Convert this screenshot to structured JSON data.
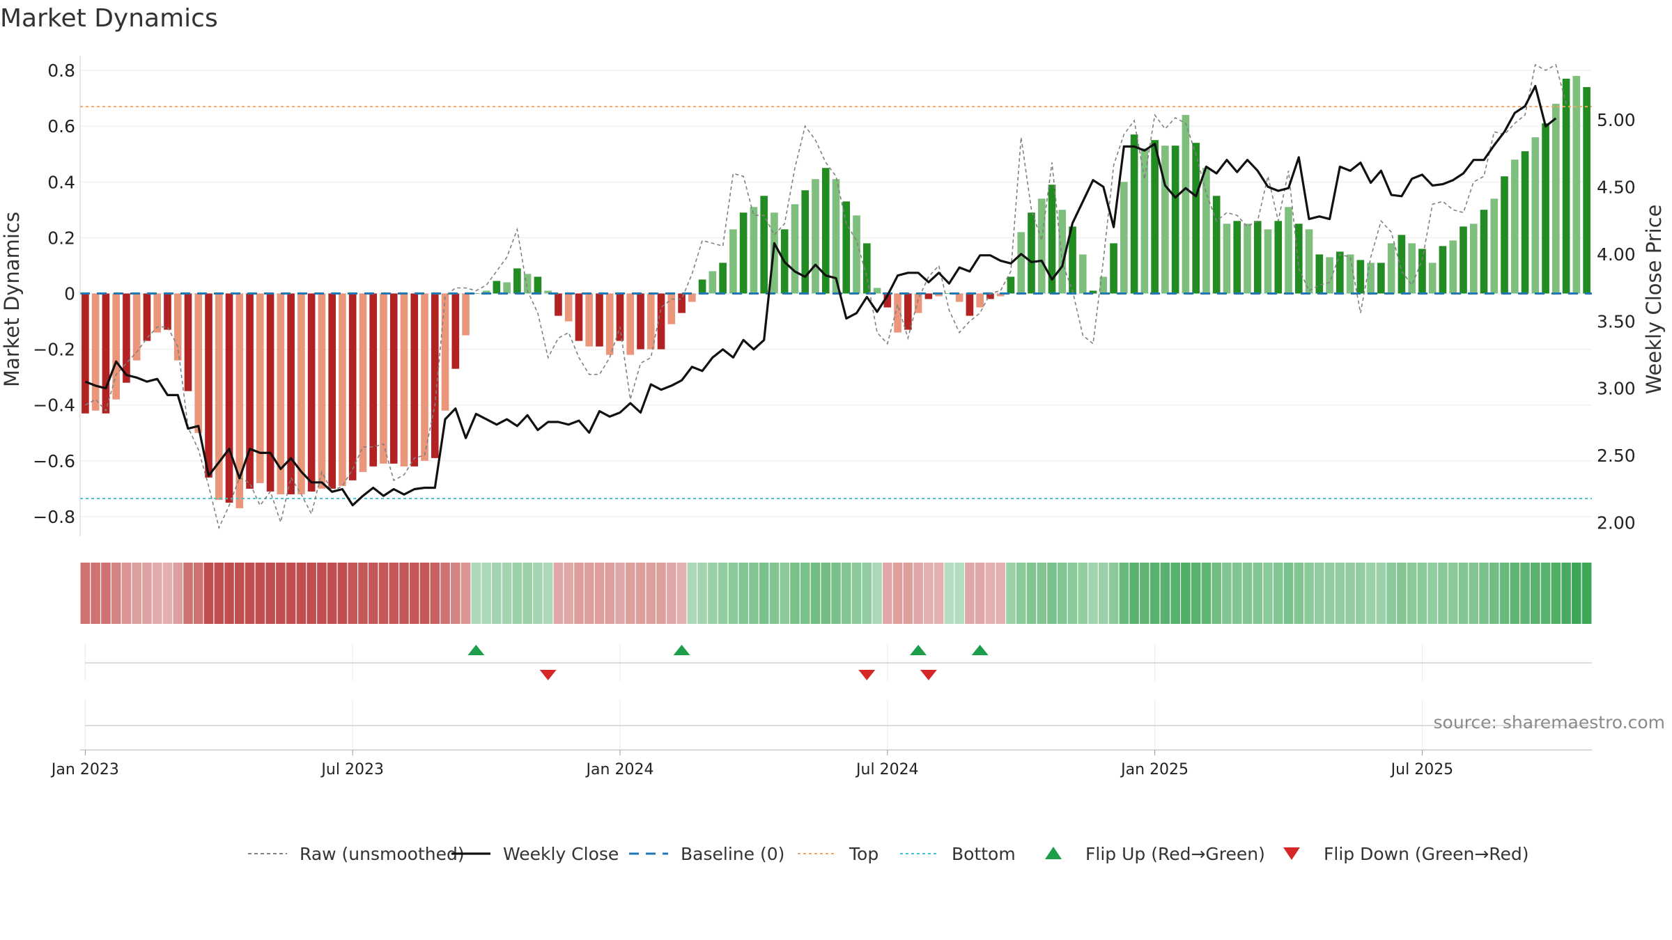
{
  "title": "Market Dynamics",
  "source_note": "source: sharemaestro.com",
  "colors": {
    "strong_green": "#228b22",
    "light_green": "#7ebf7e",
    "strong_red": "#b22222",
    "light_red": "#e9967a",
    "weekly_close": "#111111",
    "raw": "#808080",
    "baseline": "#1f77b4",
    "top": "#f4a460",
    "bottom": "#40c4d0",
    "flip_up": "#1e9e4a",
    "flip_down": "#d62728"
  },
  "chart_data": {
    "type": "bar",
    "x_axis": {
      "tick_labels": [
        "Jan 2023",
        "Jul 2023",
        "Jan 2024",
        "Jul 2024",
        "Jan 2025",
        "Jul 2025"
      ],
      "tick_weeks": [
        0,
        26,
        52,
        78,
        104,
        130
      ]
    },
    "y_left": {
      "label": "Market Dynamics",
      "range": [
        -0.87,
        0.84
      ],
      "ticks": [
        "−0.8",
        "−0.6",
        "−0.4",
        "−0.2",
        "0",
        "0.2",
        "0.4",
        "0.6",
        "0.8"
      ],
      "tick_values": [
        -0.8,
        -0.6,
        -0.4,
        -0.2,
        0,
        0.2,
        0.4,
        0.6,
        0.8
      ]
    },
    "y_right": {
      "label": "Weekly Close Price",
      "range": [
        1.9,
        5.45
      ],
      "ticks": [
        "2.00",
        "2.50",
        "3.00",
        "3.50",
        "4.00",
        "4.50",
        "5.00"
      ],
      "tick_values": [
        2.0,
        2.5,
        3.0,
        3.5,
        4.0,
        4.5,
        5.0
      ]
    },
    "legend": {
      "raw": "Raw (unsmoothed)",
      "close": "Weekly Close",
      "baseline": "Baseline (0)",
      "top": "Top",
      "bottom": "Bottom",
      "flip_up": "Flip Up (Red→Green)",
      "flip_down": "Flip Down (Green→Red)"
    },
    "top_level": 0.67,
    "bottom_level": -0.735,
    "baseline_level": 0,
    "market_dynamics": [
      -0.43,
      -0.42,
      -0.43,
      -0.38,
      -0.32,
      -0.24,
      -0.17,
      -0.14,
      -0.13,
      -0.24,
      -0.35,
      -0.5,
      -0.66,
      -0.74,
      -0.75,
      -0.77,
      -0.7,
      -0.68,
      -0.71,
      -0.72,
      -0.72,
      -0.72,
      -0.71,
      -0.7,
      -0.7,
      -0.69,
      -0.67,
      -0.64,
      -0.62,
      -0.61,
      -0.61,
      -0.62,
      -0.62,
      -0.6,
      -0.59,
      -0.42,
      -0.27,
      -0.15,
      0.0,
      0.01,
      0.045,
      0.04,
      0.09,
      0.07,
      0.06,
      0.01,
      -0.08,
      -0.1,
      -0.17,
      -0.19,
      -0.19,
      -0.22,
      -0.17,
      -0.22,
      -0.2,
      -0.2,
      -0.2,
      -0.11,
      -0.07,
      -0.03,
      0.05,
      0.08,
      0.11,
      0.23,
      0.29,
      0.31,
      0.35,
      0.29,
      0.23,
      0.32,
      0.37,
      0.41,
      0.45,
      0.41,
      0.33,
      0.28,
      0.18,
      0.02,
      -0.05,
      -0.14,
      -0.13,
      -0.07,
      -0.02,
      -0.01,
      0.0,
      -0.03,
      -0.08,
      -0.05,
      -0.02,
      -0.01,
      0.06,
      0.22,
      0.29,
      0.34,
      0.39,
      0.3,
      0.24,
      0.14,
      0.01,
      0.06,
      0.18,
      0.4,
      0.57,
      0.52,
      0.55,
      0.53,
      0.53,
      0.64,
      0.54,
      0.45,
      0.35,
      0.25,
      0.26,
      0.25,
      0.26,
      0.23,
      0.26,
      0.31,
      0.25,
      0.23,
      0.14,
      0.13,
      0.15,
      0.14,
      0.12,
      0.11,
      0.11,
      0.18,
      0.21,
      0.18,
      0.16,
      0.11,
      0.17,
      0.19,
      0.24,
      0.25,
      0.3,
      0.34,
      0.42,
      0.48,
      0.51,
      0.56,
      0.61,
      0.68,
      0.77,
      0.78,
      0.74
    ],
    "raw": [
      -0.4,
      -0.38,
      -0.42,
      -0.29,
      -0.25,
      -0.21,
      -0.16,
      -0.12,
      -0.12,
      -0.19,
      -0.48,
      -0.56,
      -0.69,
      -0.84,
      -0.76,
      -0.66,
      -0.68,
      -0.76,
      -0.71,
      -0.82,
      -0.66,
      -0.72,
      -0.79,
      -0.64,
      -0.71,
      -0.69,
      -0.63,
      -0.55,
      -0.55,
      -0.54,
      -0.67,
      -0.65,
      -0.59,
      -0.58,
      -0.4,
      -0.01,
      0.02,
      0.02,
      0.01,
      0.03,
      0.08,
      0.13,
      0.23,
      0.01,
      -0.07,
      -0.23,
      -0.16,
      -0.14,
      -0.23,
      -0.29,
      -0.29,
      -0.23,
      -0.12,
      -0.38,
      -0.25,
      -0.23,
      -0.05,
      -0.02,
      -0.02,
      0.07,
      0.19,
      0.18,
      0.17,
      0.43,
      0.42,
      0.28,
      0.28,
      0.21,
      0.25,
      0.45,
      0.6,
      0.55,
      0.47,
      0.42,
      0.25,
      0.19,
      0.06,
      -0.14,
      -0.18,
      -0.04,
      -0.16,
      -0.02,
      0.06,
      0.1,
      -0.06,
      -0.14,
      -0.1,
      -0.07,
      0.0,
      0.01,
      0.08,
      0.56,
      0.3,
      0.19,
      0.47,
      0.11,
      0.01,
      -0.15,
      -0.18,
      0.12,
      0.46,
      0.57,
      0.62,
      0.41,
      0.64,
      0.59,
      0.63,
      0.61,
      0.5,
      0.36,
      0.26,
      0.29,
      0.28,
      0.24,
      0.26,
      0.42,
      0.26,
      0.44,
      0.09,
      0.01,
      0.03,
      0.04,
      0.14,
      0.13,
      -0.07,
      0.13,
      0.26,
      0.22,
      0.08,
      0.03,
      0.12,
      0.32,
      0.33,
      0.3,
      0.29,
      0.4,
      0.42,
      0.58,
      0.57,
      0.61,
      0.64,
      0.82,
      0.8,
      0.82,
      0.68
    ],
    "weekly_close": [
      3.05,
      3.02,
      3.0,
      3.2,
      3.1,
      3.08,
      3.05,
      3.07,
      2.95,
      2.95,
      2.7,
      2.72,
      2.35,
      2.45,
      2.55,
      2.33,
      2.55,
      2.52,
      2.52,
      2.4,
      2.48,
      2.38,
      2.3,
      2.3,
      2.23,
      2.25,
      2.13,
      2.2,
      2.26,
      2.2,
      2.25,
      2.21,
      2.25,
      2.26,
      2.26,
      2.77,
      2.85,
      2.63,
      2.81,
      2.77,
      2.73,
      2.77,
      2.72,
      2.8,
      2.69,
      2.75,
      2.75,
      2.73,
      2.76,
      2.67,
      2.83,
      2.79,
      2.82,
      2.89,
      2.82,
      3.03,
      2.99,
      3.02,
      3.06,
      3.16,
      3.13,
      3.23,
      3.29,
      3.23,
      3.36,
      3.29,
      3.36,
      4.08,
      3.94,
      3.87,
      3.83,
      3.92,
      3.84,
      3.82,
      3.52,
      3.56,
      3.68,
      3.57,
      3.69,
      3.84,
      3.86,
      3.86,
      3.79,
      3.86,
      3.78,
      3.9,
      3.87,
      3.99,
      3.99,
      3.95,
      3.93,
      4.0,
      3.94,
      3.95,
      3.81,
      3.91,
      4.23,
      4.39,
      4.55,
      4.5,
      4.2,
      4.8,
      4.8,
      4.77,
      4.82,
      4.51,
      4.42,
      4.49,
      4.43,
      4.65,
      4.6,
      4.7,
      4.61,
      4.7,
      4.62,
      4.5,
      4.47,
      4.49,
      4.72,
      4.26,
      4.28,
      4.26,
      4.65,
      4.62,
      4.68,
      4.53,
      4.62,
      4.44,
      4.43,
      4.56,
      4.59,
      4.51,
      4.52,
      4.55,
      4.6,
      4.7,
      4.7,
      4.81,
      4.91,
      5.05,
      5.1,
      5.25,
      4.95,
      5.01
    ],
    "regime_strip": [
      -0.55,
      -0.55,
      -0.55,
      -0.45,
      -0.35,
      -0.3,
      -0.28,
      -0.22,
      -0.2,
      -0.3,
      -0.55,
      -0.55,
      -0.75,
      -0.75,
      -0.75,
      -0.75,
      -0.75,
      -0.75,
      -0.75,
      -0.75,
      -0.75,
      -0.75,
      -0.75,
      -0.75,
      -0.75,
      -0.75,
      -0.7,
      -0.7,
      -0.7,
      -0.7,
      -0.7,
      -0.7,
      -0.7,
      -0.7,
      -0.65,
      -0.55,
      -0.45,
      -0.35,
      0.25,
      0.25,
      0.3,
      0.3,
      0.35,
      0.35,
      0.3,
      0.25,
      -0.25,
      -0.25,
      -0.3,
      -0.3,
      -0.3,
      -0.3,
      -0.25,
      -0.3,
      -0.3,
      -0.3,
      -0.3,
      -0.25,
      -0.2,
      0.25,
      0.3,
      0.35,
      0.4,
      0.45,
      0.5,
      0.5,
      0.55,
      0.5,
      0.45,
      0.55,
      0.55,
      0.6,
      0.6,
      0.55,
      0.5,
      0.45,
      0.4,
      0.25,
      -0.25,
      -0.3,
      -0.3,
      -0.25,
      -0.2,
      -0.2,
      0.2,
      0.2,
      -0.25,
      -0.25,
      -0.2,
      -0.2,
      0.35,
      0.45,
      0.5,
      0.5,
      0.55,
      0.5,
      0.45,
      0.4,
      0.3,
      0.35,
      0.45,
      0.65,
      0.75,
      0.7,
      0.75,
      0.75,
      0.75,
      0.8,
      0.75,
      0.7,
      0.6,
      0.5,
      0.5,
      0.5,
      0.5,
      0.45,
      0.5,
      0.55,
      0.5,
      0.45,
      0.4,
      0.4,
      0.4,
      0.4,
      0.4,
      0.35,
      0.35,
      0.45,
      0.5,
      0.45,
      0.45,
      0.4,
      0.45,
      0.45,
      0.5,
      0.5,
      0.55,
      0.6,
      0.65,
      0.7,
      0.7,
      0.75,
      0.75,
      0.8,
      0.85,
      0.9,
      0.9
    ],
    "flip_up_weeks": [
      38,
      58,
      81,
      87
    ],
    "flip_down_weeks": [
      45,
      76,
      82
    ]
  }
}
